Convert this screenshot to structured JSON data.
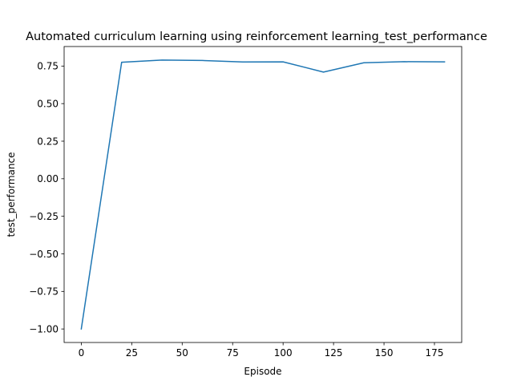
{
  "chart_data": {
    "type": "line",
    "title": "Automated curriculum learning using reinforcement learning_test_performance",
    "xlabel": "Episode",
    "ylabel": "test_performance",
    "xlim": [
      -8.5,
      188.5
    ],
    "ylim": [
      -1.09,
      0.88
    ],
    "xticks": [
      0,
      25,
      50,
      75,
      100,
      125,
      150,
      175
    ],
    "yticks": [
      -1.0,
      -0.75,
      -0.5,
      -0.25,
      0.0,
      0.25,
      0.5,
      0.75
    ],
    "xtick_labels": [
      "0",
      "25",
      "50",
      "75",
      "100",
      "125",
      "150",
      "175"
    ],
    "ytick_labels": [
      "−1.00",
      "−0.75",
      "−0.50",
      "−0.25",
      "0.00",
      "0.25",
      "0.50",
      "0.75"
    ],
    "grid": false,
    "series": [
      {
        "color": "#1f77b4",
        "x": [
          0,
          20,
          40,
          60,
          80,
          100,
          120,
          140,
          160,
          180
        ],
        "y": [
          -1.0,
          0.775,
          0.79,
          0.787,
          0.777,
          0.778,
          0.71,
          0.772,
          0.779,
          0.778
        ]
      }
    ]
  }
}
